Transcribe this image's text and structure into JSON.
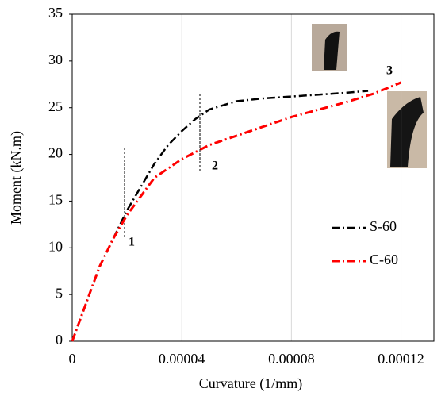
{
  "chart_data": {
    "type": "line",
    "xlabel": "Curvature (1/mm)",
    "ylabel": "Moment (kN.m)",
    "xlim": [
      0,
      0.000132
    ],
    "ylim": [
      0,
      35
    ],
    "xticks": [
      0,
      4e-05,
      8e-05,
      0.00012
    ],
    "yticks": [
      0,
      5,
      10,
      15,
      20,
      25,
      30,
      35
    ],
    "grid": "x",
    "legend": "lower right",
    "annotations": [
      "1",
      "2",
      "3"
    ],
    "series": [
      {
        "name": "S-60",
        "color": "#000000",
        "x": [
          0,
          5e-06,
          1e-05,
          1.5e-05,
          2e-05,
          2.5e-05,
          3e-05,
          3.5e-05,
          4e-05,
          4.5e-05,
          5e-05,
          6e-05,
          7e-05,
          8e-05,
          9e-05,
          0.0001,
          0.000108
        ],
        "values": [
          0,
          4,
          8,
          11,
          14,
          16.5,
          19,
          21,
          22.5,
          23.8,
          24.8,
          25.7,
          26,
          26.2,
          26.4,
          26.6,
          26.8
        ]
      },
      {
        "name": "C-60",
        "color": "#ff0000",
        "x": [
          0,
          5e-06,
          1e-05,
          1.5e-05,
          2e-05,
          2.5e-05,
          3e-05,
          4e-05,
          5e-05,
          6e-05,
          7e-05,
          8e-05,
          9e-05,
          0.0001,
          0.00011,
          0.00012
        ],
        "values": [
          0,
          4,
          8,
          11,
          13.5,
          15.5,
          17.5,
          19.5,
          21,
          22,
          23,
          24,
          24.8,
          25.6,
          26.5,
          27.7
        ]
      }
    ]
  }
}
